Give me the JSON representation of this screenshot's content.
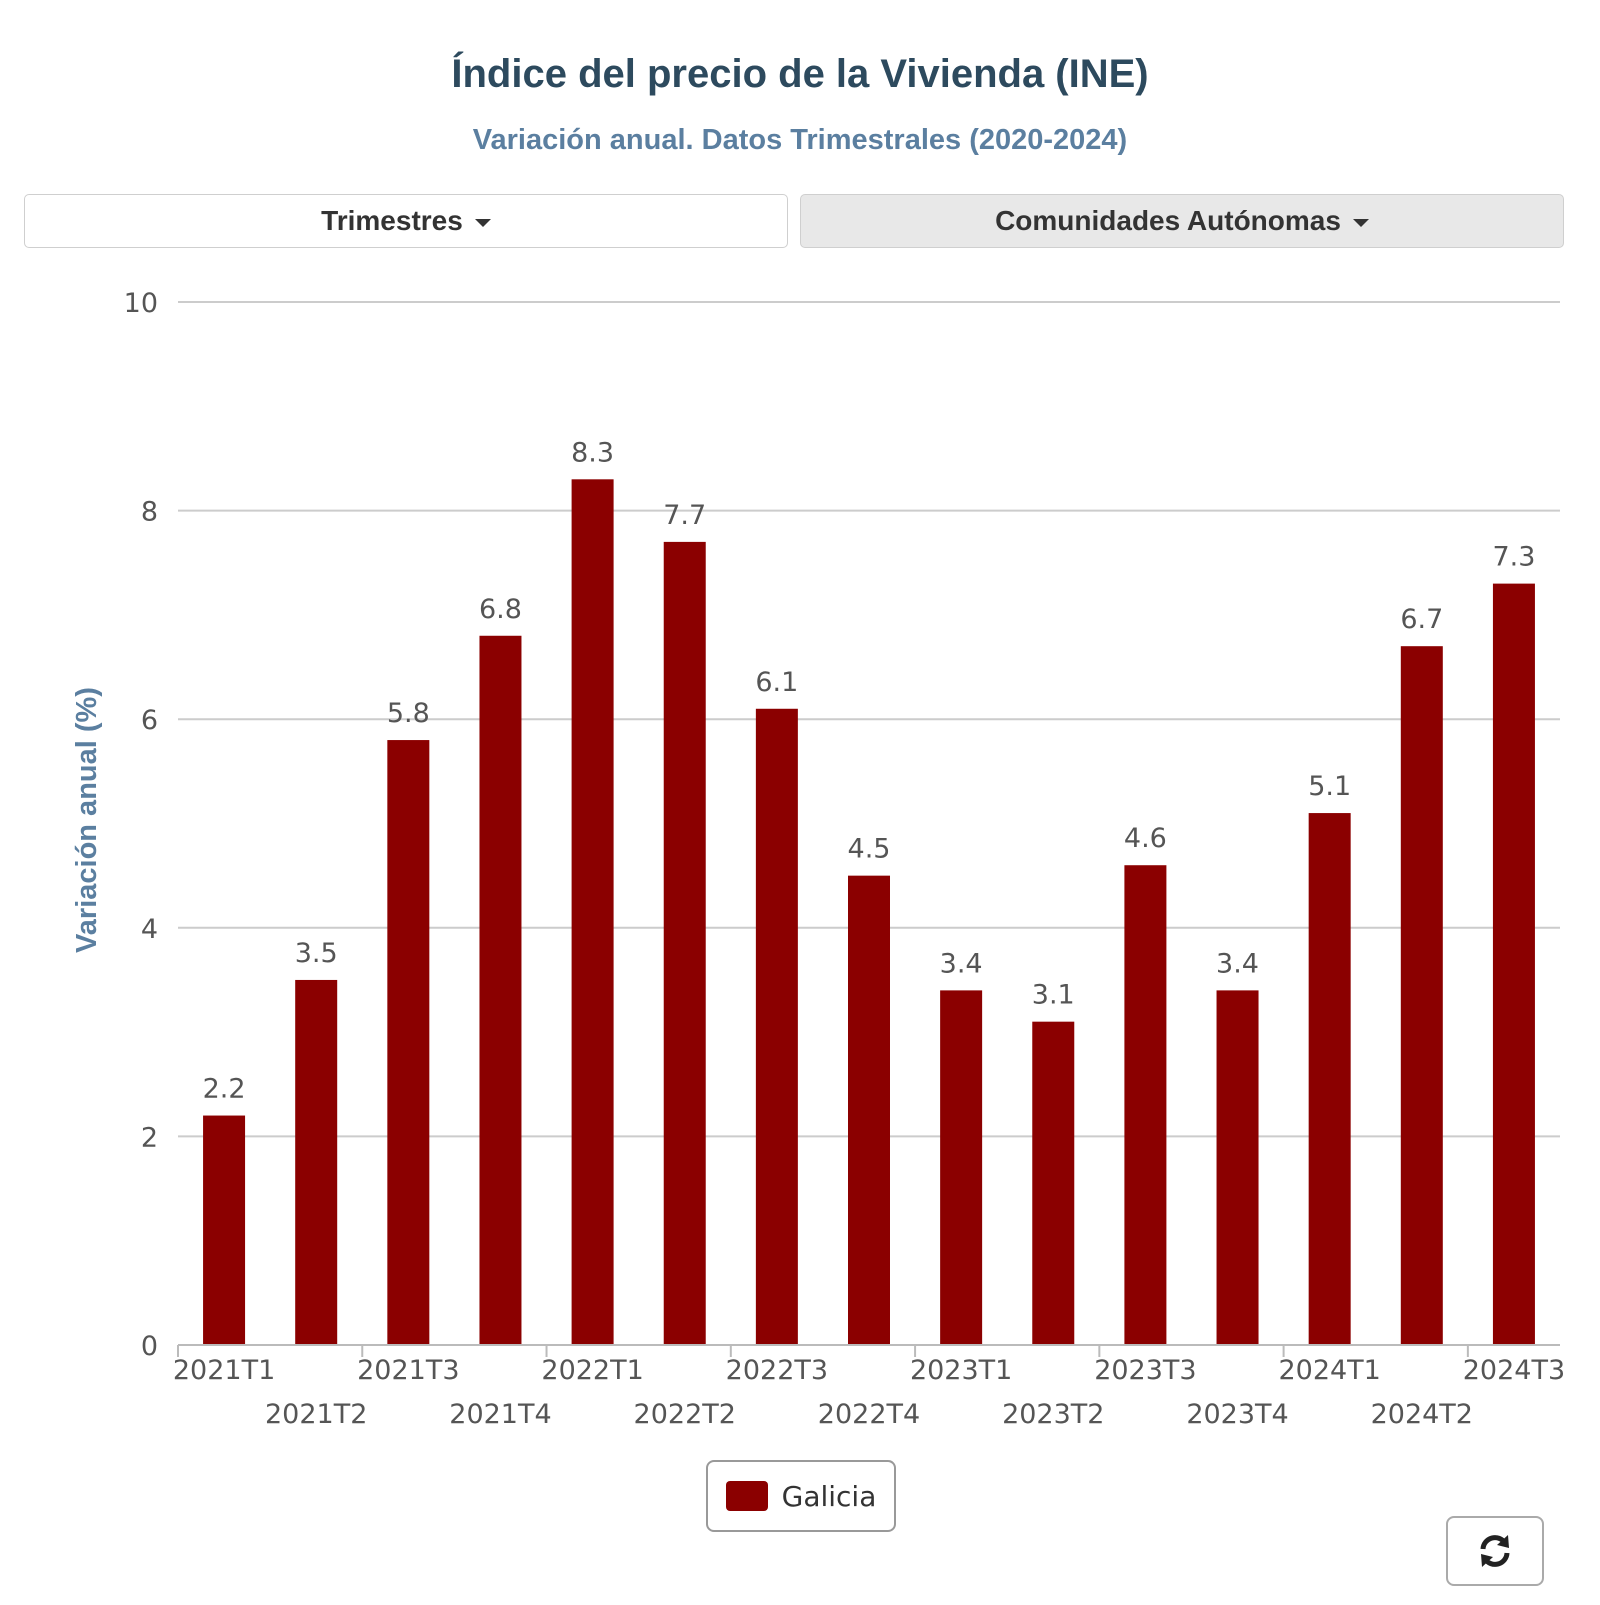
{
  "header": {
    "title": "Índice del precio de la Vivienda (INE)",
    "subtitle": "Variación anual. Datos Trimestrales (2020-2024)"
  },
  "controls": {
    "trimestres_label": "Trimestres",
    "comunidades_label": "Comunidades Autónomas",
    "refresh_icon": "refresh-icon"
  },
  "legend": {
    "label": "Galicia",
    "color": "#8b0000"
  },
  "chart_data": {
    "type": "bar",
    "ylabel": "Variación anual (%)",
    "xlabel": "",
    "ylim": [
      0,
      10
    ],
    "yticks": [
      0,
      2,
      4,
      6,
      8,
      10
    ],
    "grid": true,
    "legend_position": "bottom-center",
    "categories": [
      "2021T1",
      "2021T2",
      "2021T3",
      "2021T4",
      "2022T1",
      "2022T2",
      "2022T3",
      "2022T4",
      "2023T1",
      "2023T2",
      "2023T3",
      "2023T4",
      "2024T1",
      "2024T2",
      "2024T3"
    ],
    "series": [
      {
        "name": "Galicia",
        "color": "#8b0000",
        "values": [
          2.2,
          3.5,
          5.8,
          6.8,
          8.3,
          7.7,
          6.1,
          4.5,
          3.4,
          3.1,
          4.6,
          3.4,
          5.1,
          6.7,
          7.3
        ],
        "labels": [
          "2.2",
          "3.5",
          "5.8",
          "6.8",
          "8.3",
          "7.7",
          "6.1",
          "4.5",
          "3.4",
          "3.1",
          "4.6",
          "3.4",
          "5.1",
          "6.7",
          "7.3"
        ]
      }
    ]
  }
}
